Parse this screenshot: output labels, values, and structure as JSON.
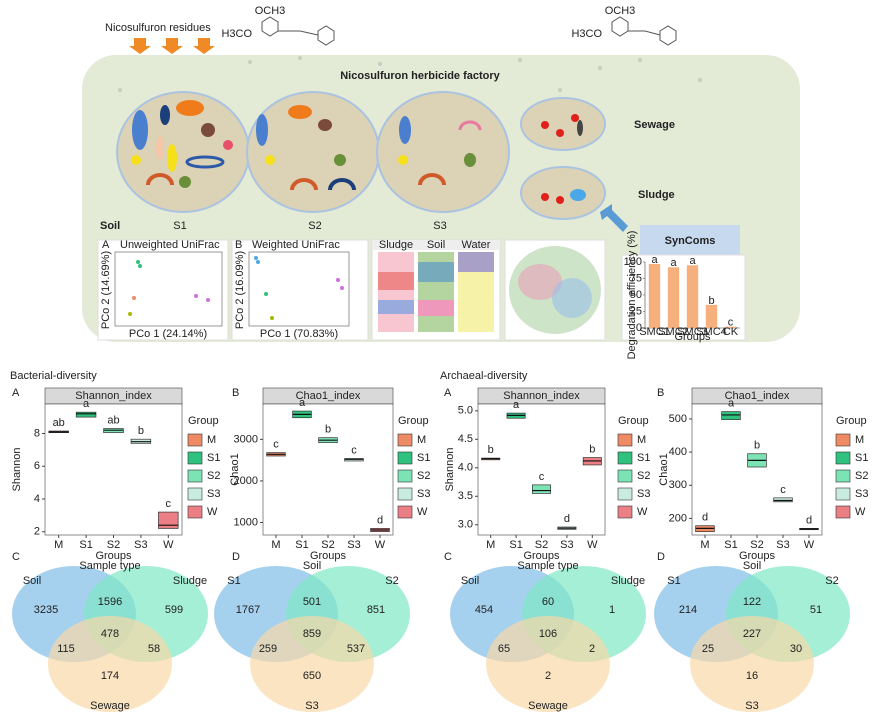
{
  "header": {
    "residues": "Nicosulfuron residues",
    "factory": "Nicosulfuron herbicide factory",
    "molecule_labels": [
      "OCH3",
      "H3CO"
    ],
    "soil": "Soil",
    "stages": [
      "S1",
      "S2",
      "S3"
    ],
    "sewage": "Sewage",
    "sludge": "Sludge",
    "syncoms": "SynComs"
  },
  "insets": {
    "pcoa": [
      {
        "panel": "A",
        "title": "Unweighted UniFrac",
        "xlabel": "PCo 1 (24.14%)",
        "ylabel": "PCo 2 (14.69%)"
      },
      {
        "panel": "B",
        "title": "Weighted UniFrac",
        "xlabel": "PCo 1 (70.83%)",
        "ylabel": "PCo 2 (16.09%)"
      }
    ],
    "composition_headers": [
      "Sludge",
      "Soil",
      "Water"
    ],
    "degradation": {
      "categories": [
        "SMC1",
        "SMC2",
        "SMC3",
        "SMC4",
        "CK"
      ],
      "values": [
        97,
        92,
        95,
        35,
        2
      ],
      "letters": [
        "a",
        "a",
        "a",
        "b",
        "c"
      ],
      "ylim": [
        0,
        100
      ],
      "yticks": [
        0,
        25,
        50,
        75,
        100
      ],
      "ylabel": "Degradation efficiency (%)",
      "xlabel": "Groups",
      "color": "#f6b07e"
    }
  },
  "bacterial": {
    "section": "Bacterial-diversity",
    "panels": [
      "A",
      "B",
      "C",
      "D"
    ],
    "shannon": {
      "title": "Shannon_index",
      "ylabel": "Shannon",
      "xlabel": "Groups",
      "legend_title": "Group",
      "categories": [
        "M",
        "S1",
        "S2",
        "S3",
        "W"
      ],
      "colors": [
        "#ee8a64",
        "#2ec27e",
        "#7ce3b4",
        "#c9ece0",
        "#ec7f86"
      ],
      "q1": [
        8.05,
        9.0,
        8.05,
        7.4,
        2.2
      ],
      "median": [
        8.1,
        9.2,
        8.2,
        7.5,
        2.4
      ],
      "q3": [
        8.15,
        9.3,
        8.3,
        7.65,
        3.2
      ],
      "letters": [
        "ab",
        "a",
        "ab",
        "b",
        "c"
      ],
      "ylim": [
        1.8,
        9.8
      ],
      "yticks": [
        2,
        4,
        6,
        8
      ]
    },
    "chao1": {
      "title": "Chao1_index",
      "ylabel": "Chao1",
      "xlabel": "Groups",
      "legend_title": "Group",
      "categories": [
        "M",
        "S1",
        "S2",
        "S3",
        "W"
      ],
      "colors": [
        "#ee8a64",
        "#2ec27e",
        "#7ce3b4",
        "#c9ece0",
        "#ec7f86"
      ],
      "q1": [
        2600,
        3520,
        2920,
        2480,
        780
      ],
      "median": [
        2640,
        3600,
        2980,
        2520,
        820
      ],
      "q3": [
        2680,
        3680,
        3040,
        2540,
        860
      ],
      "letters": [
        "c",
        "a",
        "b",
        "c",
        "d"
      ],
      "ylim": [
        700,
        3850
      ],
      "yticks": [
        {
          "value": 1000,
          "label": "1000"
        },
        {
          "value": 2000,
          "label": "2000"
        },
        {
          "value": 3000,
          "label": "3000"
        }
      ]
    },
    "venn_type": {
      "title": "Sample type",
      "sets": [
        "Soil",
        "Sludge",
        "Sewage"
      ],
      "counts": [
        3235,
        1596,
        599,
        115,
        478,
        58,
        174
      ]
    },
    "venn_soil": {
      "title": "Soil",
      "sets": [
        "S1",
        "S2",
        "S3"
      ],
      "counts": [
        1767,
        501,
        851,
        259,
        859,
        537,
        650
      ]
    }
  },
  "archaeal": {
    "section": "Archaeal-diversity",
    "panels": [
      "A",
      "B",
      "C",
      "D"
    ],
    "shannon": {
      "title": "Shannon_index",
      "ylabel": "Shannon",
      "xlabel": "Groups",
      "legend_title": "Group",
      "categories": [
        "M",
        "S1",
        "S2",
        "S3",
        "W"
      ],
      "colors": [
        "#ee8a64",
        "#2ec27e",
        "#7ce3b4",
        "#c9ece0",
        "#ec7f86"
      ],
      "q1": [
        4.14,
        4.87,
        3.55,
        2.92,
        4.05
      ],
      "median": [
        4.16,
        4.92,
        3.6,
        2.94,
        4.12
      ],
      "q3": [
        4.17,
        4.96,
        3.7,
        2.96,
        4.18
      ],
      "letters": [
        "b",
        "a",
        "c",
        "d",
        "b"
      ],
      "ylim": [
        2.82,
        5.12
      ],
      "yticks": [
        {
          "value": 3,
          "label": "3.0"
        },
        {
          "value": 3.5,
          "label": "3.5"
        },
        {
          "value": 4,
          "label": "4.0"
        },
        {
          "value": 4.5,
          "label": "4.5"
        },
        {
          "value": 5,
          "label": "5.0"
        }
      ]
    },
    "chao1": {
      "title": "Chao1_index",
      "ylabel": "Chao1",
      "xlabel": "Groups",
      "legend_title": "Group",
      "categories": [
        "M",
        "S1",
        "S2",
        "S3",
        "W"
      ],
      "colors": [
        "#ee8a64",
        "#2ec27e",
        "#7ce3b4",
        "#c9ece0",
        "#ec7f86"
      ],
      "q1": [
        160,
        498,
        355,
        250,
        166
      ],
      "median": [
        170,
        512,
        375,
        254,
        168
      ],
      "q3": [
        178,
        522,
        395,
        262,
        170
      ],
      "letters": [
        "d",
        "a",
        "b",
        "c",
        "d"
      ],
      "ylim": [
        150,
        545
      ],
      "yticks": [
        200,
        300,
        400,
        500
      ]
    },
    "venn_type": {
      "title": "Sample type",
      "sets": [
        "Soil",
        "Sludge",
        "Sewage"
      ],
      "counts": [
        454,
        60,
        1,
        65,
        106,
        2,
        2
      ]
    },
    "venn_soil": {
      "title": "Soil",
      "sets": [
        "S1",
        "S2",
        "S3"
      ],
      "counts": [
        214,
        122,
        51,
        25,
        227,
        30,
        16
      ]
    }
  }
}
